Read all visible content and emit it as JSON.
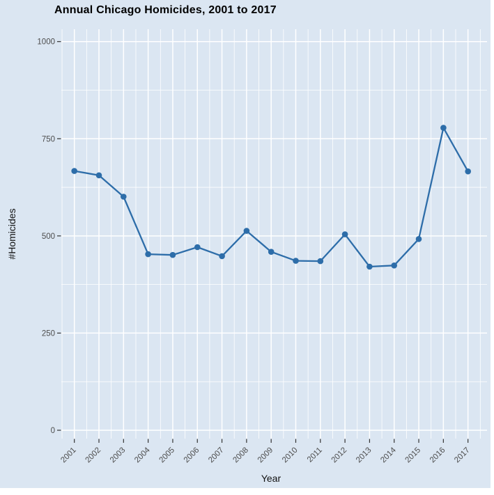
{
  "chart_data": {
    "type": "line",
    "title": "Annual Chicago Homicides, 2001 to 2017",
    "xlabel": "Year",
    "ylabel": "#Homicides",
    "x": [
      2001,
      2002,
      2003,
      2004,
      2005,
      2006,
      2007,
      2008,
      2009,
      2010,
      2011,
      2012,
      2013,
      2014,
      2015,
      2016,
      2017
    ],
    "values": [
      667,
      656,
      601,
      453,
      451,
      471,
      448,
      513,
      459,
      436,
      435,
      504,
      421,
      424,
      492,
      778,
      666
    ],
    "x_tick_labels": [
      "2001",
      "2002",
      "2003",
      "2004",
      "2005",
      "2006",
      "2007",
      "2008",
      "2009",
      "2010",
      "2011",
      "2012",
      "2013",
      "2014",
      "2015",
      "2016",
      "2017"
    ],
    "y_ticks": [
      0,
      250,
      500,
      750,
      1000
    ],
    "y_tick_labels": [
      "0",
      "250",
      "500",
      "750",
      "1000"
    ],
    "ylim": [
      0,
      1000
    ],
    "legend": "none",
    "grid": "white major and minor gridlines on light blue panel",
    "marker": "filled-circle"
  },
  "style": {
    "page_bg": "#ffffff",
    "figure_bg": "#dbe6f2",
    "grid_color": "#ffffff",
    "line_color": "#2d6da9",
    "point_color": "#2d6da9",
    "axis_tick_color": "#333333",
    "tick_label_color": "#4d4d4d",
    "title_color": "#000000",
    "axis_title_color": "#111111"
  }
}
